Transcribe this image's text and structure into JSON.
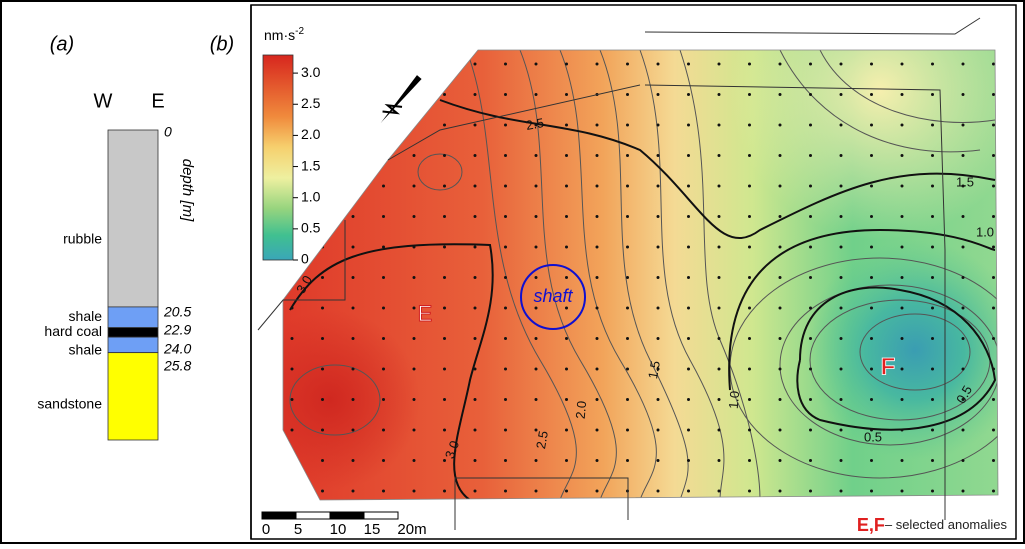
{
  "panel_a": {
    "label": "(a)",
    "columns": [
      "W",
      "E"
    ],
    "depth_axis_label": "depth [m]",
    "depths": [
      0,
      20.5,
      22.9,
      {
        "value": 24,
        "label": "24.0"
      },
      25.8
    ],
    "layers": [
      {
        "name": "rubble",
        "color": "#c8c8c8"
      },
      {
        "name": "shale",
        "color": "#6e9ff5"
      },
      {
        "name": "hard coal",
        "color": "#000000"
      },
      {
        "name": "shale",
        "color": "#6e9ff5"
      },
      {
        "name": "sandstone",
        "color": "#ffff00"
      }
    ]
  },
  "panel_b": {
    "label": "(b)",
    "unit": {
      "base": "nm·s",
      "exponent": "-2"
    },
    "colorbar_ticks": [
      0,
      {
        "value": 0.5,
        "label": "0.5"
      },
      {
        "value": 1,
        "label": "1.0"
      },
      {
        "value": 1.5,
        "label": "1.5"
      },
      {
        "value": 2,
        "label": "2.0"
      },
      {
        "value": 2.5,
        "label": "2.5"
      },
      {
        "value": 3,
        "label": "3.0"
      }
    ],
    "contour_labels": [
      "2.5",
      "1.5",
      "1.0",
      "3.0",
      "1.5",
      "2.0",
      "1.0",
      "0.5",
      "0.5",
      "3.0",
      "2.5"
    ],
    "anomalies": [
      "E",
      "F"
    ],
    "shaft": "shaft",
    "scale_bar": [
      "0",
      "5",
      "10",
      "15",
      "20m"
    ],
    "legend": {
      "marks": "E,F",
      "text": "– selected anomalies"
    }
  }
}
